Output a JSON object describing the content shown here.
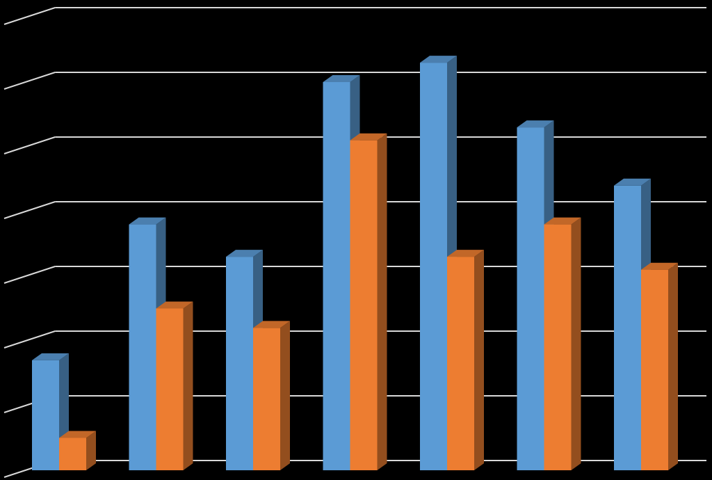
{
  "chart_data": {
    "type": "bar",
    "style": "3d-clustered-column",
    "categories": [
      "",
      "",
      "",
      "",
      "",
      "",
      ""
    ],
    "series": [
      {
        "color": "#5B9BD5",
        "values": [
          1.7,
          3.8,
          3.3,
          6.0,
          6.3,
          5.3,
          4.4
        ]
      },
      {
        "color": "#ED7D31",
        "values": [
          0.5,
          2.5,
          2.2,
          5.1,
          3.3,
          3.8,
          3.1
        ]
      }
    ],
    "ylim": [
      0,
      7
    ],
    "grid": true,
    "legend": "none",
    "title": "",
    "xlabel": "",
    "ylabel": ""
  },
  "colors": {
    "background": "#000000",
    "gridline": "#D9D9D9",
    "series_1": "#5B9BD5",
    "series_2": "#ED7D31"
  }
}
